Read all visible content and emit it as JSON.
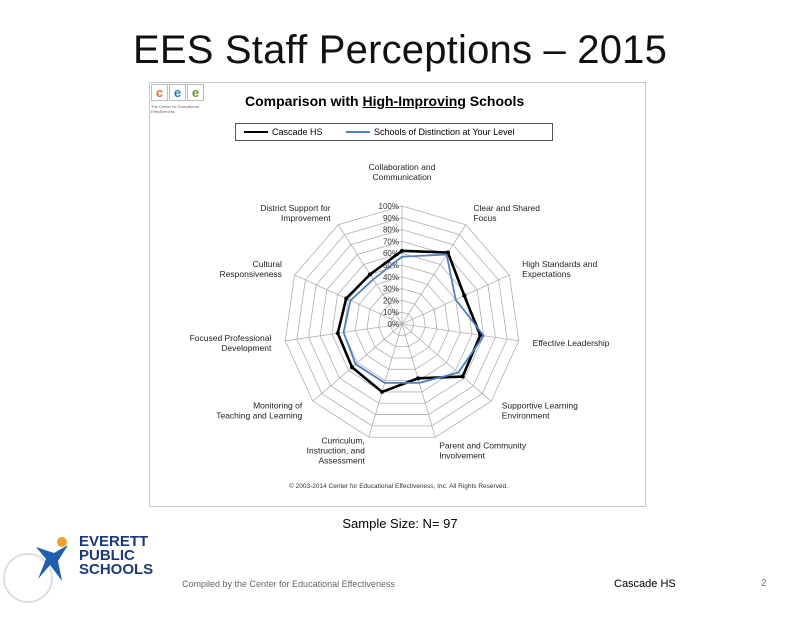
{
  "slide": {
    "title": "EES Staff Perceptions – 2015",
    "sample_size": "Sample Size: N= 97",
    "footer_left": "Compiled by the Center for Educational Effectiveness",
    "footer_school": "Cascade HS",
    "page_number": "2"
  },
  "logos": {
    "cee_letters": [
      "c",
      "e",
      "e"
    ],
    "cee_tagline": "The Center for Educational Effectiveness",
    "district_name_lines": [
      "EVERETT",
      "PUBLIC",
      "SCHOOLS"
    ]
  },
  "chart_data": {
    "type": "radar",
    "title_prefix": "Comparison with ",
    "title_emphasis": "High-Improving",
    "title_suffix": " Schools",
    "categories": [
      "Collaboration and Communication",
      "Clear and Shared Focus",
      "High Standards and Expectations",
      "Effective Leadership",
      "Supportive Learning Environment",
      "Parent and Community Involvement",
      "Curriculum, Instruction, and Assessment",
      "Monitoring of Teaching and Learning",
      "Focused Professional Development",
      "Cultural Responsiveness",
      "District Support for Improvement"
    ],
    "radial_ticks": [
      "0%",
      "10%",
      "20%",
      "30%",
      "40%",
      "50%",
      "60%",
      "70%",
      "80%",
      "90%",
      "100%"
    ],
    "rlim": [
      0,
      100
    ],
    "series": [
      {
        "name": "Cascade HS",
        "color": "#000000",
        "values": [
          62,
          72,
          58,
          67,
          68,
          48,
          60,
          56,
          55,
          52,
          50
        ]
      },
      {
        "name": "Schools of Distinction at Your Level",
        "color": "#4f81bd",
        "values": [
          57,
          70,
          50,
          70,
          63,
          52,
          52,
          52,
          50,
          48,
          45
        ]
      }
    ],
    "copyright": "© 2003-2014 Center for Educational Effectiveness, Inc. All Rights Reserved."
  }
}
